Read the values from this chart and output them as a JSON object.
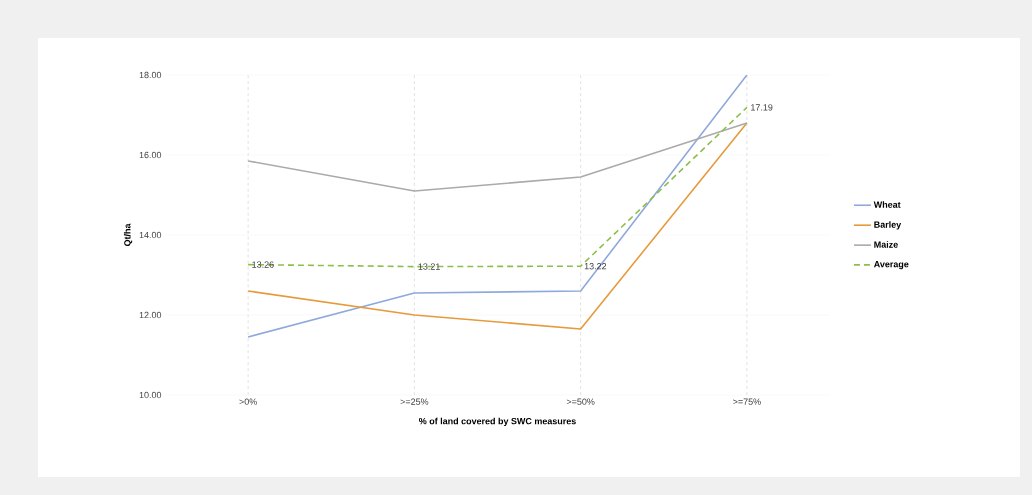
{
  "chart_data": {
    "type": "line",
    "xlabel": "% of land covered by SWC measures",
    "ylabel": "Qt/ha",
    "categories": [
      ">0%",
      ">=25%",
      ">=50%",
      ">=75%"
    ],
    "series": [
      {
        "name": "Wheat",
        "color": "#8fa8dc",
        "values": [
          11.45,
          12.55,
          12.6,
          18.0
        ]
      },
      {
        "name": "Barley",
        "color": "#e69a3c",
        "values": [
          12.6,
          12.0,
          11.65,
          16.8
        ]
      },
      {
        "name": "Maize",
        "color": "#aaaaaa",
        "values": [
          15.85,
          15.1,
          15.45,
          16.8
        ]
      },
      {
        "name": "Average",
        "color": "#8cbf4a",
        "line_style": "dashed",
        "values": [
          13.26,
          13.21,
          13.22,
          17.19
        ],
        "value_labels": [
          "13.26",
          "13.21",
          "13.22",
          "17.19"
        ]
      }
    ],
    "ylim": [
      10,
      18
    ],
    "yticks": [
      {
        "value": 10,
        "label": "10.00"
      },
      {
        "value": 12,
        "label": "12.00"
      },
      {
        "value": 14,
        "label": "14.00"
      },
      {
        "value": 16,
        "label": "16.00"
      },
      {
        "value": 18,
        "label": "18.00"
      }
    ],
    "grid": true,
    "legend": "right",
    "marker": "none"
  }
}
